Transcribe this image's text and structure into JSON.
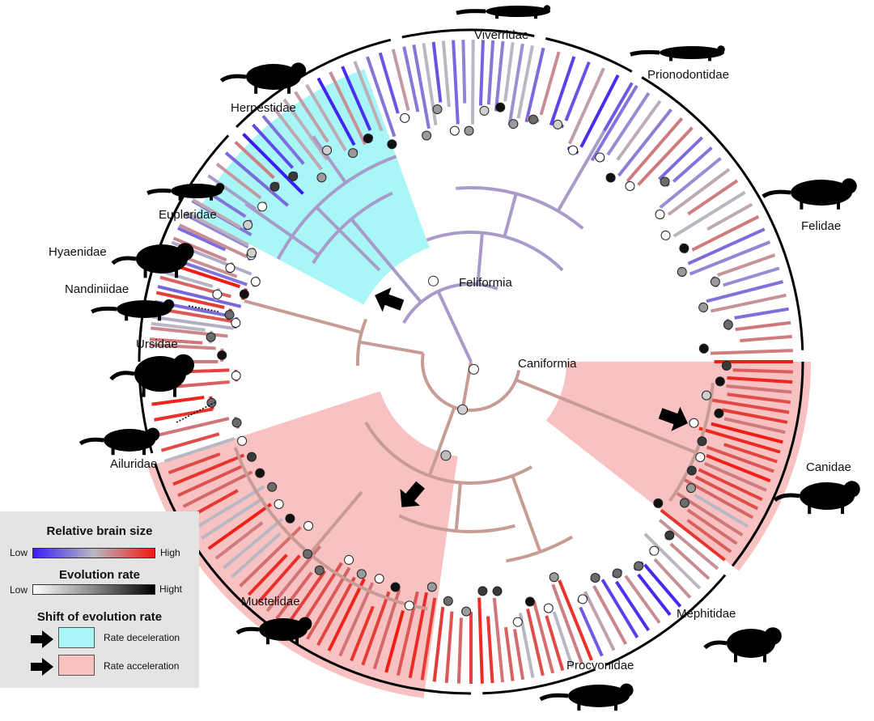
{
  "clades": {
    "feliformia": "Feliformia",
    "caniformia": "Caniformia"
  },
  "families": [
    {
      "id": "viverridae",
      "name": "Viverridae"
    },
    {
      "id": "prionodontidae",
      "name": "Prionodontidae"
    },
    {
      "id": "felidae",
      "name": "Felidae"
    },
    {
      "id": "herpestidae",
      "name": "Herpestidae"
    },
    {
      "id": "eupleridae",
      "name": "Eupleridae"
    },
    {
      "id": "hyaenidae",
      "name": "Hyaenidae"
    },
    {
      "id": "nandiniidae",
      "name": "Nandiniidae"
    },
    {
      "id": "ursidae",
      "name": "Ursidae"
    },
    {
      "id": "ailuridae",
      "name": "Ailuridae"
    },
    {
      "id": "canidae",
      "name": "Canidae"
    },
    {
      "id": "mustelidae",
      "name": "Mustelidae"
    },
    {
      "id": "mephitidae",
      "name": "Mephitidae"
    },
    {
      "id": "procyonidae",
      "name": "Procyonidae"
    }
  ],
  "legend": {
    "brain_title": "Relative brain size",
    "brain_low": "Low",
    "brain_high": "High",
    "rate_title": "Evolution rate",
    "rate_low": "Low",
    "rate_high": "Hight",
    "shift_title": "Shift of evolution rate",
    "deceleration": "Rate deceleration",
    "acceleration": "Rate acceleration"
  },
  "colors": {
    "brain_low": "#3b1cf5",
    "brain_mid": "#b8b8c4",
    "brain_high": "#f21a10",
    "deceleration_bg": "#a8f6f6",
    "acceleration_bg": "#f9c2c2",
    "branch_feliformia": "#a99bc9",
    "branch_caniformia": "#c79c95"
  }
}
